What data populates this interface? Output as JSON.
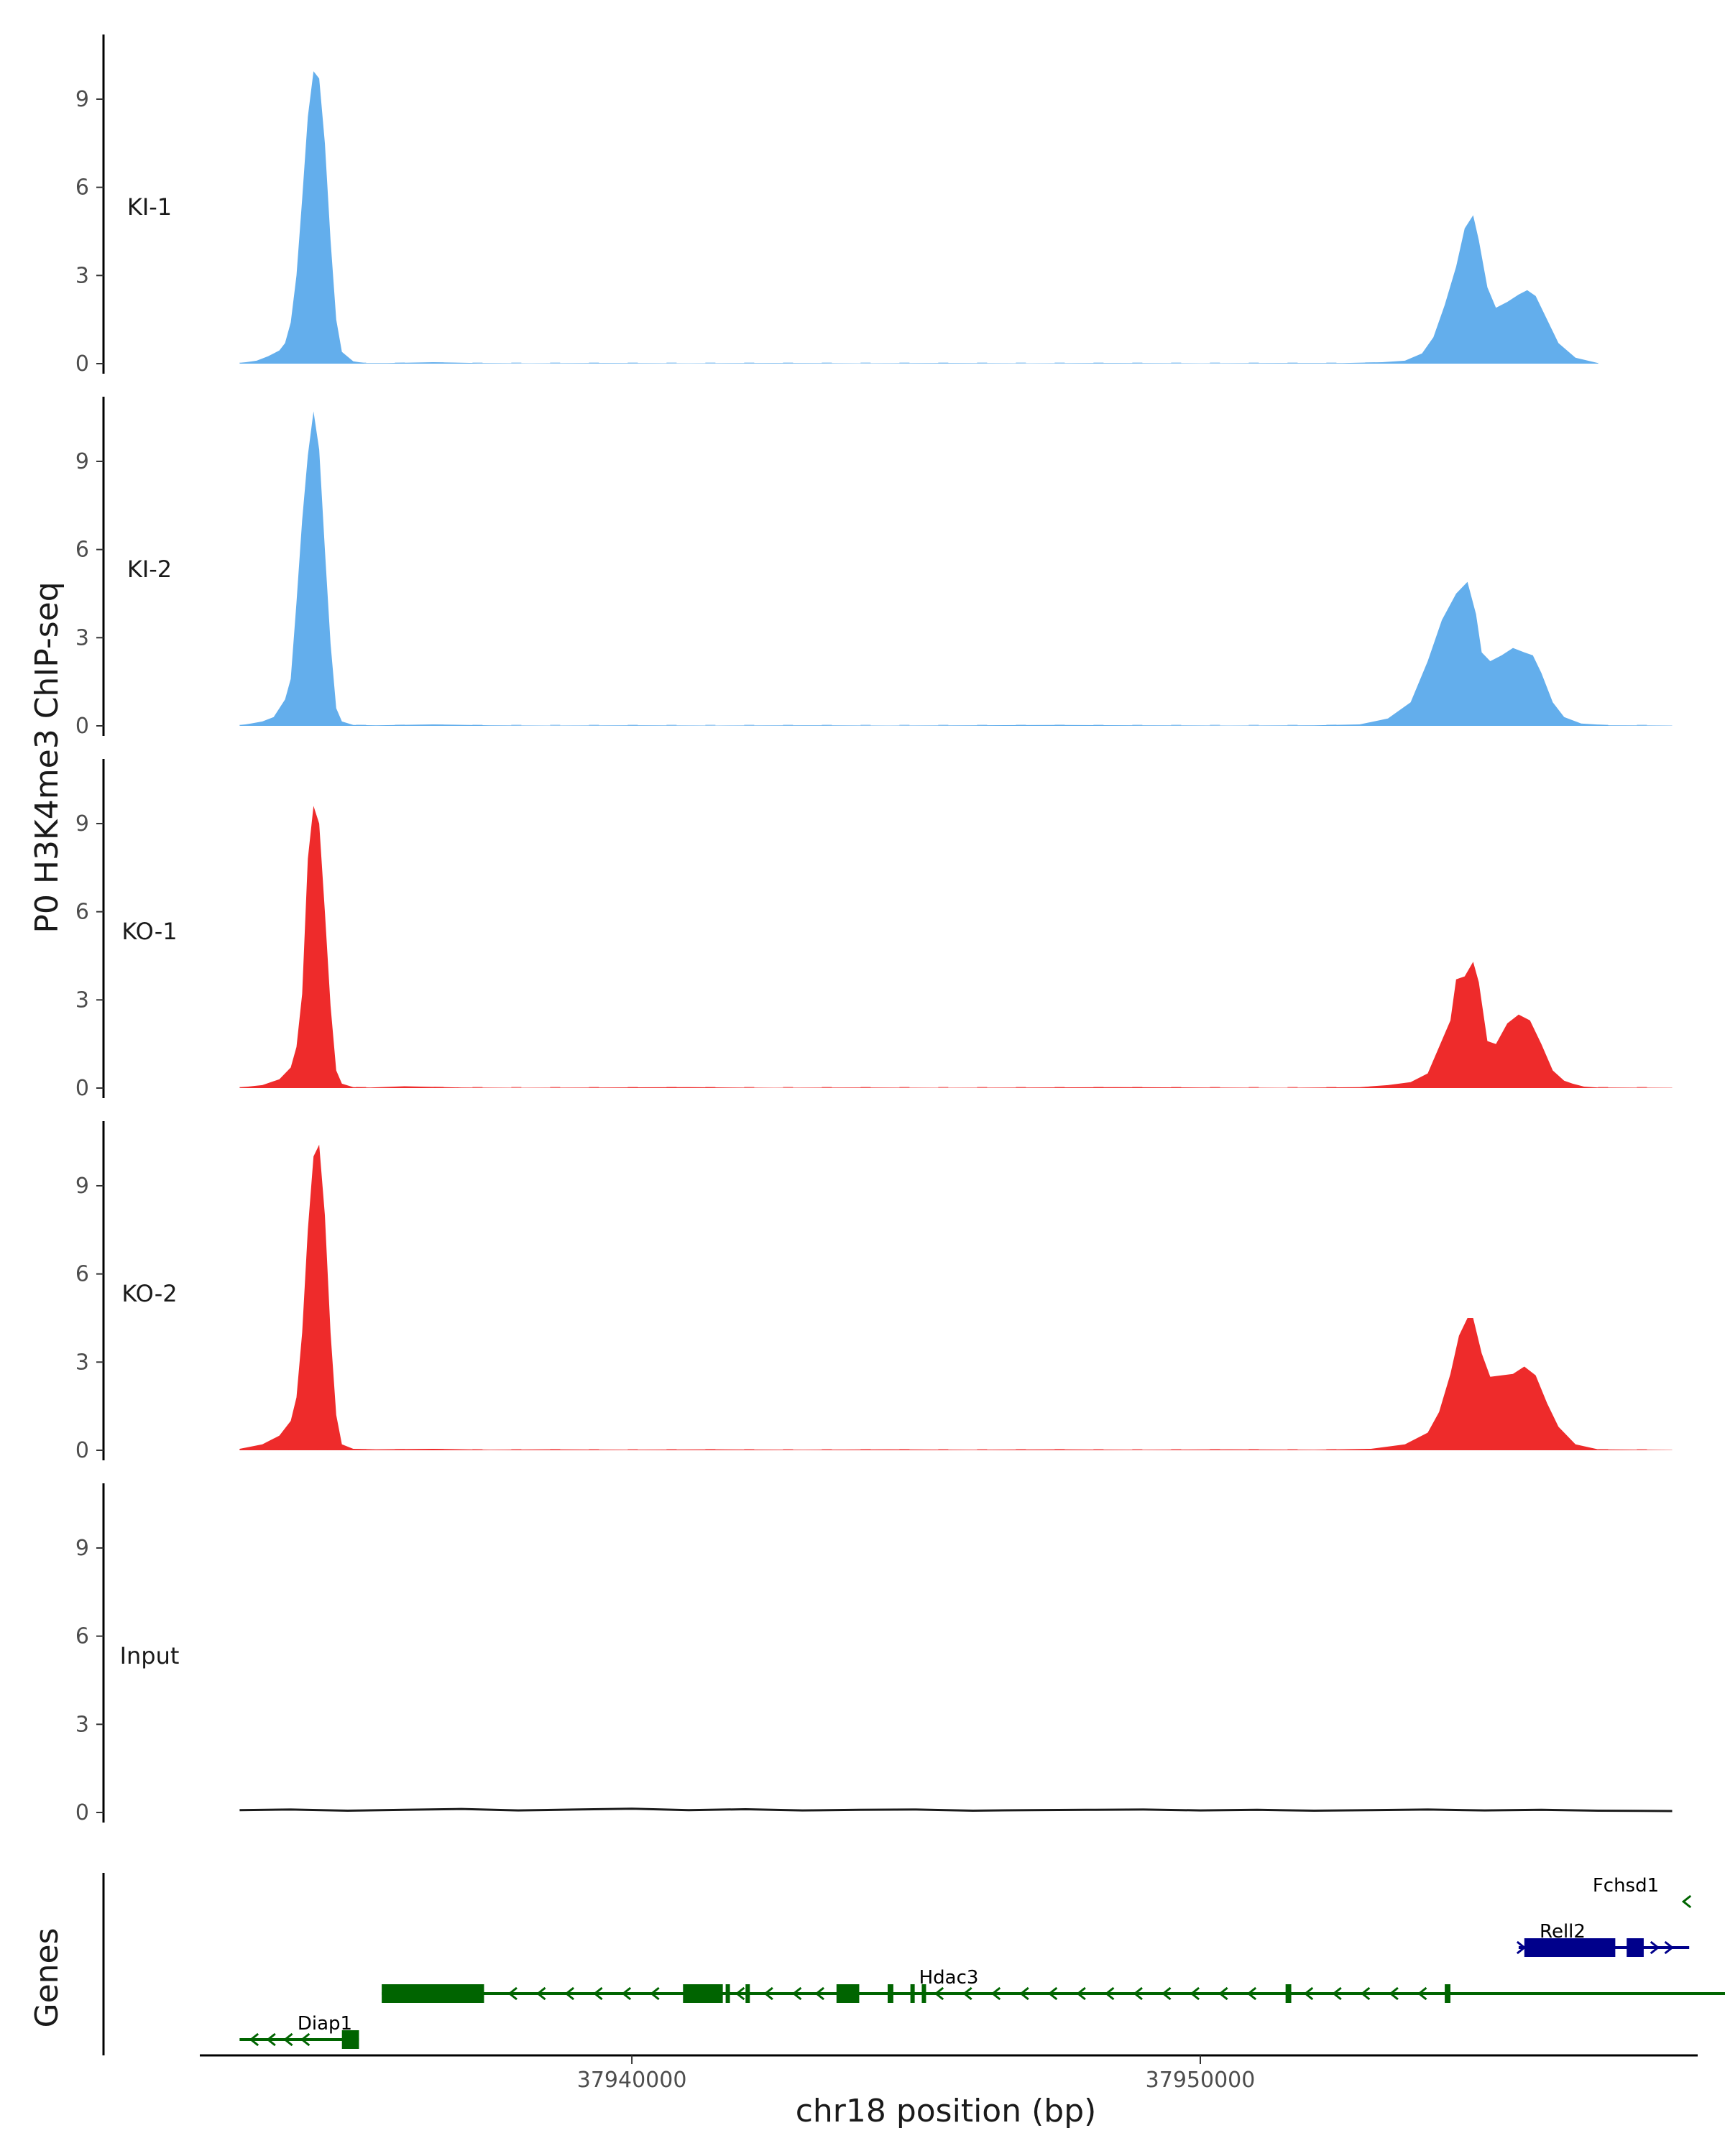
{
  "chart_data": {
    "type": "area",
    "title": "",
    "ylabel": "P0 H3K4me3 ChIP-seq",
    "xlabel": "chr18 position (bp)",
    "genes_label": "Genes",
    "xlim": [
      37932400,
      37958800
    ],
    "ylim": [
      0,
      11.2
    ],
    "y_ticks": [
      0,
      3,
      6,
      9
    ],
    "x_ticks": [
      37940000,
      37950000
    ],
    "x_tick_labels": [
      "37940000",
      "37950000"
    ],
    "colors": {
      "KI": "#63aeec",
      "KO": "#ee2b2b",
      "Input": "#1a1a1a",
      "gene_minus": "#006400",
      "gene_plus": "#00008b"
    },
    "tracks": [
      {
        "name": "KI-1",
        "color": "#63aeec",
        "x": [
          37933100,
          37933400,
          37933600,
          37933800,
          37933900,
          37934000,
          37934100,
          37934200,
          37934300,
          37934400,
          37934500,
          37934600,
          37934700,
          37934800,
          37934900,
          37935100,
          37935300,
          37935700,
          37936500,
          37937300,
          37938200,
          37939500,
          37941000,
          37942500,
          37944000,
          37945500,
          37947000,
          37948500,
          37950000,
          37951500,
          37952500,
          37953200,
          37953600,
          37953900,
          37954100,
          37954300,
          37954500,
          37954650,
          37954800,
          37954900,
          37955050,
          37955200,
          37955400,
          37955600,
          37955750,
          37955900,
          37956100,
          37956300,
          37956600,
          37957000
        ],
        "y": [
          0.02,
          0.1,
          0.25,
          0.45,
          0.7,
          1.4,
          3.0,
          5.6,
          8.4,
          9.95,
          9.7,
          7.5,
          4.2,
          1.5,
          0.4,
          0.08,
          0.02,
          0.02,
          0.05,
          0.02,
          0.01,
          0.02,
          0.01,
          0.02,
          0.01,
          0.02,
          0.01,
          0.02,
          0.01,
          0.02,
          0.02,
          0.05,
          0.1,
          0.35,
          0.9,
          2.0,
          3.3,
          4.6,
          5.05,
          4.2,
          2.6,
          1.9,
          2.1,
          2.35,
          2.5,
          2.3,
          1.5,
          0.7,
          0.2,
          0.02
        ]
      },
      {
        "name": "KI-2",
        "color": "#63aeec",
        "x": [
          37933100,
          37933300,
          37933500,
          37933700,
          37933800,
          37933900,
          37934000,
          37934100,
          37934200,
          37934300,
          37934400,
          37934500,
          37934600,
          37934700,
          37934800,
          37934900,
          37935100,
          37935500,
          37936500,
          37937500,
          37938500,
          37940000,
          37941500,
          37943000,
          37944500,
          37946000,
          37947500,
          37949000,
          37950500,
          37952000,
          37952800,
          37953300,
          37953700,
          37954000,
          37954250,
          37954500,
          37954700,
          37954850,
          37954950,
          37955100,
          37955300,
          37955500,
          37955700,
          37955850,
          37956000,
          37956200,
          37956400,
          37956700,
          37957200,
          37958300
        ],
        "y": [
          0.02,
          0.08,
          0.15,
          0.3,
          0.6,
          0.9,
          1.6,
          4.2,
          7.0,
          9.2,
          10.7,
          9.4,
          6.0,
          2.8,
          0.6,
          0.15,
          0.03,
          0.02,
          0.05,
          0.02,
          0.01,
          0.02,
          0.01,
          0.02,
          0.01,
          0.02,
          0.03,
          0.02,
          0.01,
          0.02,
          0.05,
          0.25,
          0.8,
          2.2,
          3.6,
          4.5,
          4.9,
          3.8,
          2.5,
          2.2,
          2.4,
          2.65,
          2.5,
          2.4,
          1.8,
          0.8,
          0.3,
          0.08,
          0.02,
          0.01
        ]
      },
      {
        "name": "KO-1",
        "color": "#ee2b2b",
        "x": [
          37933100,
          37933500,
          37933800,
          37934000,
          37934100,
          37934200,
          37934300,
          37934400,
          37934500,
          37934600,
          37934700,
          37934800,
          37934900,
          37935100,
          37935400,
          37936000,
          37937000,
          37938000,
          37939500,
          37941000,
          37942500,
          37944000,
          37945500,
          37947000,
          37948500,
          37950000,
          37951500,
          37952800,
          37953300,
          37953700,
          37954000,
          37954200,
          37954400,
          37954500,
          37954650,
          37954800,
          37954900,
          37955050,
          37955200,
          37955400,
          37955600,
          37955800,
          37956000,
          37956200,
          37956400,
          37956550,
          37956750,
          37957000,
          37958300
        ],
        "y": [
          0.02,
          0.1,
          0.3,
          0.7,
          1.4,
          3.2,
          7.8,
          9.6,
          9.0,
          6.0,
          2.8,
          0.6,
          0.15,
          0.03,
          0.02,
          0.06,
          0.02,
          0.01,
          0.02,
          0.03,
          0.01,
          0.02,
          0.01,
          0.02,
          0.03,
          0.02,
          0.01,
          0.03,
          0.1,
          0.2,
          0.5,
          1.4,
          2.3,
          3.7,
          3.8,
          4.3,
          3.6,
          1.6,
          1.5,
          2.2,
          2.5,
          2.3,
          1.5,
          0.6,
          0.25,
          0.15,
          0.05,
          0.02,
          0.01
        ]
      },
      {
        "name": "KO-2",
        "color": "#ee2b2b",
        "x": [
          37933100,
          37933500,
          37933800,
          37934000,
          37934100,
          37934200,
          37934300,
          37934400,
          37934500,
          37934600,
          37934700,
          37934800,
          37934900,
          37935100,
          37935500,
          37936500,
          37937500,
          37938500,
          37940000,
          37941500,
          37943000,
          37944500,
          37946000,
          37947500,
          37949000,
          37950500,
          37952000,
          37953000,
          37953600,
          37954000,
          37954200,
          37954400,
          37954550,
          37954700,
          37954800,
          37954950,
          37955100,
          37955300,
          37955500,
          37955700,
          37955900,
          37956100,
          37956300,
          37956600,
          37957000,
          37958300
        ],
        "y": [
          0.05,
          0.2,
          0.5,
          1.0,
          1.8,
          4.0,
          7.5,
          10.0,
          10.4,
          8.0,
          4.0,
          1.2,
          0.2,
          0.05,
          0.03,
          0.05,
          0.02,
          0.03,
          0.02,
          0.03,
          0.02,
          0.03,
          0.02,
          0.03,
          0.02,
          0.03,
          0.02,
          0.05,
          0.2,
          0.6,
          1.3,
          2.6,
          3.9,
          4.5,
          4.5,
          3.3,
          2.5,
          2.55,
          2.6,
          2.85,
          2.55,
          1.6,
          0.8,
          0.2,
          0.03,
          0.01
        ]
      },
      {
        "name": "Input",
        "color": "#1a1a1a",
        "x": [
          37933100,
          37934000,
          37935000,
          37936000,
          37937000,
          37938000,
          37939000,
          37940000,
          37941000,
          37942000,
          37943000,
          37944000,
          37945000,
          37946000,
          37947000,
          37948000,
          37949000,
          37950000,
          37951000,
          37952000,
          37953000,
          37954000,
          37955000,
          37956000,
          37957000,
          37958300
        ],
        "y": [
          0.08,
          0.1,
          0.06,
          0.09,
          0.12,
          0.07,
          0.1,
          0.13,
          0.08,
          0.11,
          0.07,
          0.09,
          0.1,
          0.06,
          0.08,
          0.09,
          0.1,
          0.07,
          0.09,
          0.06,
          0.08,
          0.1,
          0.07,
          0.09,
          0.06,
          0.05
        ]
      }
    ],
    "genes": [
      {
        "name": "Diap1",
        "strand": "-",
        "start": 37933100,
        "end": 37935200,
        "row": 4,
        "exons": [
          [
            37934900,
            37935200
          ]
        ],
        "arrows": [
          37933350,
          37933650,
          37933950,
          37934250
        ]
      },
      {
        "name": "Hdac3",
        "strand": "-",
        "start": 37935600,
        "end": 37960000,
        "row": 3,
        "exons": [
          [
            37935600,
            37937400
          ],
          [
            37940900,
            37941600
          ],
          [
            37941650,
            37941700
          ],
          [
            37942000,
            37942050
          ],
          [
            37943600,
            37944000
          ],
          [
            37944500,
            37944600
          ],
          [
            37944900,
            37944950
          ],
          [
            37945100,
            37945150
          ],
          [
            37951500,
            37951600
          ],
          [
            37954300,
            37954400
          ]
        ],
        "arrows": [
          37937900,
          37938400,
          37938900,
          37939400,
          37939900,
          37940400,
          37941900,
          37942400,
          37942900,
          37943300,
          37945400,
          37945900,
          37946400,
          37946900,
          37947400,
          37947900,
          37948400,
          37948900,
          37949400,
          37949900,
          37950400,
          37950900,
          37951900,
          37952400,
          37952900,
          37953400,
          37953900
        ]
      },
      {
        "name": "Rell2",
        "strand": "+",
        "start": 37955600,
        "end": 37958600,
        "row": 2,
        "exons": [
          [
            37955700,
            37957300
          ],
          [
            37957500,
            37957800
          ]
        ],
        "arrows": [
          37955650,
          37958000,
          37958250
        ]
      },
      {
        "name": "Fchsd1",
        "strand": "-",
        "start": 37958500,
        "end": 37958700,
        "row": 1,
        "exons": [],
        "arrows": [
          37958550
        ]
      }
    ]
  }
}
